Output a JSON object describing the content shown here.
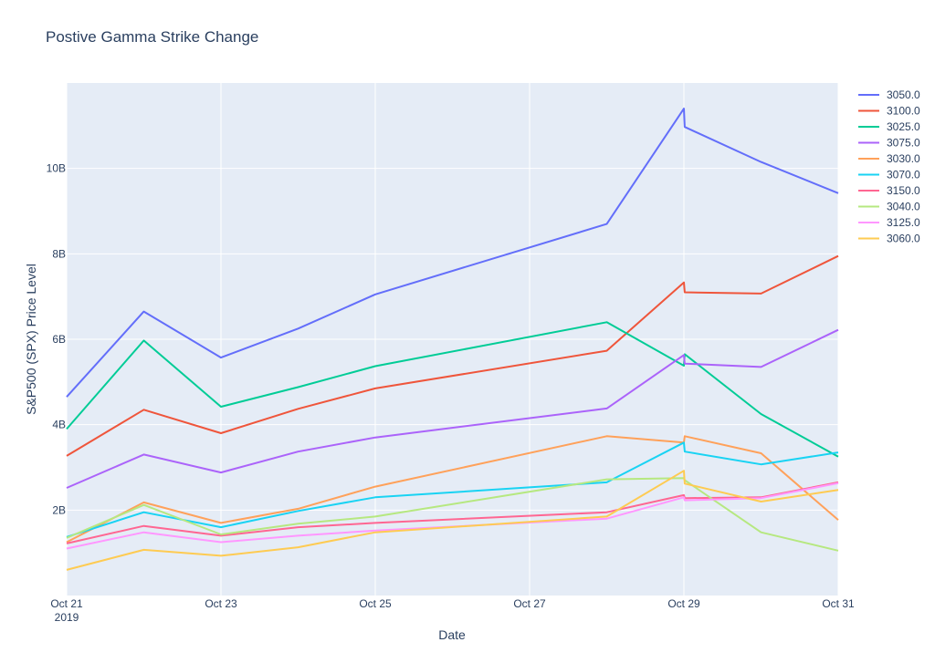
{
  "chart_data": {
    "type": "line",
    "title": "Postive Gamma Strike Change",
    "xlabel": "Date",
    "ylabel": "S&P500 (SPX) Price Level",
    "x_range": [
      "2019-10-21",
      "2019-10-31"
    ],
    "ylim": [
      0,
      12000000000.0
    ],
    "grid": true,
    "plot_background": "#e5ecf6",
    "legend_position": "right",
    "x_ticks": [
      {
        "date": "2019-10-21",
        "label": "Oct 21",
        "sublabel": "2019"
      },
      {
        "date": "2019-10-23",
        "label": "Oct 23"
      },
      {
        "date": "2019-10-25",
        "label": "Oct 25"
      },
      {
        "date": "2019-10-27",
        "label": "Oct 27"
      },
      {
        "date": "2019-10-29",
        "label": "Oct 29"
      },
      {
        "date": "2019-10-31",
        "label": "Oct 31"
      }
    ],
    "y_ticks": [
      {
        "value": 2000000000,
        "label": "2B"
      },
      {
        "value": 4000000000,
        "label": "4B"
      },
      {
        "value": 6000000000,
        "label": "6B"
      },
      {
        "value": 8000000000,
        "label": "8B"
      },
      {
        "value": 10000000000,
        "label": "10B"
      }
    ],
    "series": [
      {
        "name": "3050.0",
        "color": "#636efa",
        "points": [
          [
            "2019-10-21",
            4650000000.0
          ],
          [
            "2019-10-22",
            6650000000.0
          ],
          [
            "2019-10-23",
            5570000000.0
          ],
          [
            "2019-10-24",
            6250000000.0
          ],
          [
            "2019-10-25",
            7050000000.0
          ],
          [
            "2019-10-28",
            8700000000.0
          ],
          [
            "2019-10-29 00:00",
            11400000000.0
          ],
          [
            "2019-10-29 00:15",
            10970000000.0
          ],
          [
            "2019-10-30",
            10150000000.0
          ],
          [
            "2019-10-31",
            9420000000.0
          ]
        ]
      },
      {
        "name": "3100.0",
        "color": "#ef553b",
        "points": [
          [
            "2019-10-21",
            3270000000.0
          ],
          [
            "2019-10-22",
            4350000000.0
          ],
          [
            "2019-10-23",
            3800000000.0
          ],
          [
            "2019-10-24",
            4370000000.0
          ],
          [
            "2019-10-25",
            4850000000.0
          ],
          [
            "2019-10-28",
            5730000000.0
          ],
          [
            "2019-10-29 00:00",
            7330000000.0
          ],
          [
            "2019-10-29 00:15",
            7100000000.0
          ],
          [
            "2019-10-30",
            7070000000.0
          ],
          [
            "2019-10-31",
            7950000000.0
          ]
        ]
      },
      {
        "name": "3025.0",
        "color": "#00cc96",
        "points": [
          [
            "2019-10-21",
            3900000000.0
          ],
          [
            "2019-10-22",
            5970000000.0
          ],
          [
            "2019-10-23",
            4420000000.0
          ],
          [
            "2019-10-24",
            4880000000.0
          ],
          [
            "2019-10-25",
            5370000000.0
          ],
          [
            "2019-10-28",
            6400000000.0
          ],
          [
            "2019-10-29 00:00",
            5380000000.0
          ],
          [
            "2019-10-29 00:15",
            5650000000.0
          ],
          [
            "2019-10-30",
            4250000000.0
          ],
          [
            "2019-10-31",
            3250000000.0
          ]
        ]
      },
      {
        "name": "3075.0",
        "color": "#ab63fa",
        "points": [
          [
            "2019-10-21",
            2520000000.0
          ],
          [
            "2019-10-22",
            3300000000.0
          ],
          [
            "2019-10-23",
            2880000000.0
          ],
          [
            "2019-10-24",
            3370000000.0
          ],
          [
            "2019-10-25",
            3700000000.0
          ],
          [
            "2019-10-28",
            4380000000.0
          ],
          [
            "2019-10-29 00:00",
            5630000000.0
          ],
          [
            "2019-10-29 00:15",
            5430000000.0
          ],
          [
            "2019-10-30",
            5350000000.0
          ],
          [
            "2019-10-31",
            6220000000.0
          ]
        ]
      },
      {
        "name": "3030.0",
        "color": "#ffa15a",
        "points": [
          [
            "2019-10-21",
            1250000000.0
          ],
          [
            "2019-10-22",
            2180000000.0
          ],
          [
            "2019-10-23",
            1700000000.0
          ],
          [
            "2019-10-24",
            2030000000.0
          ],
          [
            "2019-10-25",
            2550000000.0
          ],
          [
            "2019-10-28",
            3730000000.0
          ],
          [
            "2019-10-29 00:00",
            3580000000.0
          ],
          [
            "2019-10-29 00:15",
            3730000000.0
          ],
          [
            "2019-10-30",
            3330000000.0
          ],
          [
            "2019-10-31",
            1770000000.0
          ]
        ]
      },
      {
        "name": "3070.0",
        "color": "#19d3f3",
        "points": [
          [
            "2019-10-21",
            1370000000.0
          ],
          [
            "2019-10-22",
            1950000000.0
          ],
          [
            "2019-10-23",
            1600000000.0
          ],
          [
            "2019-10-24",
            1980000000.0
          ],
          [
            "2019-10-25",
            2300000000.0
          ],
          [
            "2019-10-28",
            2650000000.0
          ],
          [
            "2019-10-29 00:00",
            3580000000.0
          ],
          [
            "2019-10-29 00:15",
            3370000000.0
          ],
          [
            "2019-10-30",
            3070000000.0
          ],
          [
            "2019-10-31",
            3350000000.0
          ]
        ]
      },
      {
        "name": "3150.0",
        "color": "#ff6692",
        "points": [
          [
            "2019-10-21",
            1220000000.0
          ],
          [
            "2019-10-22",
            1630000000.0
          ],
          [
            "2019-10-23",
            1400000000.0
          ],
          [
            "2019-10-24",
            1600000000.0
          ],
          [
            "2019-10-25",
            1700000000.0
          ],
          [
            "2019-10-28",
            1950000000.0
          ],
          [
            "2019-10-29 00:00",
            2350000000.0
          ],
          [
            "2019-10-29 00:15",
            2280000000.0
          ],
          [
            "2019-10-30",
            2300000000.0
          ],
          [
            "2019-10-31",
            2650000000.0
          ]
        ]
      },
      {
        "name": "3040.0",
        "color": "#b6e880",
        "points": [
          [
            "2019-10-21",
            1350000000.0
          ],
          [
            "2019-10-22",
            2120000000.0
          ],
          [
            "2019-10-23",
            1430000000.0
          ],
          [
            "2019-10-24",
            1680000000.0
          ],
          [
            "2019-10-25",
            1850000000.0
          ],
          [
            "2019-10-28",
            2720000000.0
          ],
          [
            "2019-10-29 00:00",
            2750000000.0
          ],
          [
            "2019-10-29 00:15",
            2700000000.0
          ],
          [
            "2019-10-30",
            1480000000.0
          ],
          [
            "2019-10-31",
            1050000000.0
          ]
        ]
      },
      {
        "name": "3125.0",
        "color": "#ff97ff",
        "points": [
          [
            "2019-10-21",
            1100000000.0
          ],
          [
            "2019-10-22",
            1480000000.0
          ],
          [
            "2019-10-23",
            1250000000.0
          ],
          [
            "2019-10-24",
            1400000000.0
          ],
          [
            "2019-10-25",
            1520000000.0
          ],
          [
            "2019-10-28",
            1800000000.0
          ],
          [
            "2019-10-29 00:00",
            2300000000.0
          ],
          [
            "2019-10-29 00:15",
            2230000000.0
          ],
          [
            "2019-10-30",
            2280000000.0
          ],
          [
            "2019-10-31",
            2630000000.0
          ]
        ]
      },
      {
        "name": "3060.0",
        "color": "#fecb52",
        "points": [
          [
            "2019-10-21",
            600000000.0
          ],
          [
            "2019-10-22",
            1070000000.0
          ],
          [
            "2019-10-23",
            930000000.0
          ],
          [
            "2019-10-24",
            1130000000.0
          ],
          [
            "2019-10-25",
            1480000000.0
          ],
          [
            "2019-10-28",
            1850000000.0
          ],
          [
            "2019-10-29 00:00",
            2920000000.0
          ],
          [
            "2019-10-29 00:15",
            2620000000.0
          ],
          [
            "2019-10-30",
            2200000000.0
          ],
          [
            "2019-10-31",
            2470000000.0
          ]
        ]
      }
    ]
  }
}
